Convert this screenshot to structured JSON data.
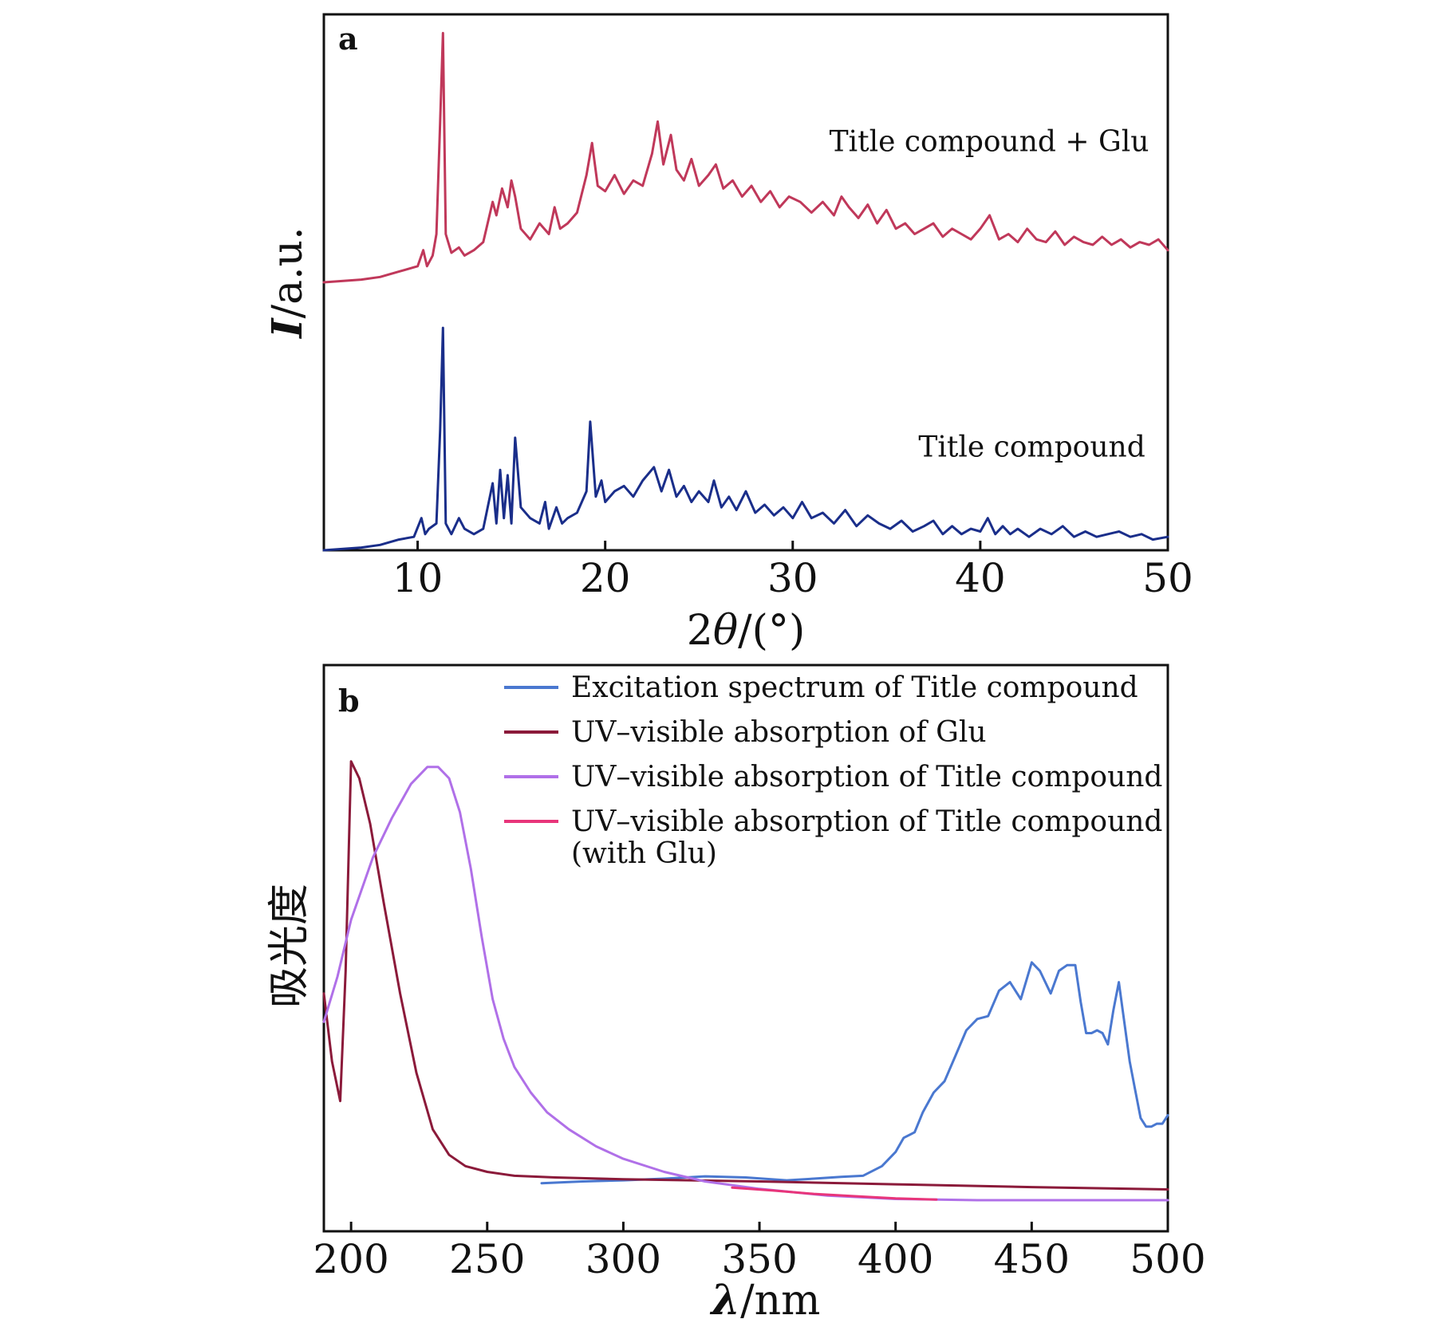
{
  "chart_data": [
    {
      "panel": "a",
      "type": "line",
      "xlabel_prefix": "2",
      "xlabel_symbol": "θ",
      "xlabel_unit": "/(°)",
      "ylabel_symbol": "I",
      "ylabel_unit": "/a.u.",
      "xlim": [
        5,
        50
      ],
      "ylim": [
        0,
        2.0
      ],
      "xticks": [
        "10",
        "20",
        "30",
        "40",
        "50"
      ],
      "xtick_values": [
        10,
        20,
        30,
        40,
        50
      ],
      "series": [
        {
          "name": "Title compound + Glu",
          "color": "#c0385a",
          "baseline_offset": 1.0,
          "x": [
            5.0,
            7.0,
            8.0,
            9.0,
            10.0,
            10.3,
            10.5,
            10.8,
            11.0,
            11.2,
            11.35,
            11.5,
            11.8,
            12.2,
            12.5,
            13.0,
            13.5,
            14.0,
            14.2,
            14.5,
            14.8,
            15.0,
            15.2,
            15.5,
            16.0,
            16.5,
            17.0,
            17.3,
            17.6,
            18.0,
            18.5,
            19.0,
            19.3,
            19.6,
            20.0,
            20.5,
            21.0,
            21.5,
            22.0,
            22.5,
            22.8,
            23.1,
            23.5,
            23.8,
            24.2,
            24.6,
            25.0,
            25.5,
            25.9,
            26.3,
            26.8,
            27.3,
            27.8,
            28.3,
            28.8,
            29.3,
            29.8,
            30.4,
            31.0,
            31.6,
            32.2,
            32.6,
            33.0,
            33.5,
            34.0,
            34.5,
            35.0,
            35.5,
            36.0,
            36.5,
            37.0,
            37.5,
            38.0,
            38.5,
            39.0,
            39.5,
            40.0,
            40.5,
            41.0,
            41.5,
            42.0,
            42.5,
            43.0,
            43.5,
            44.0,
            44.5,
            45.0,
            45.5,
            46.0,
            46.5,
            47.0,
            47.5,
            48.0,
            48.5,
            49.0,
            49.5,
            50.0
          ],
          "y": [
            1.0,
            1.01,
            1.02,
            1.04,
            1.06,
            1.12,
            1.06,
            1.1,
            1.18,
            1.6,
            1.93,
            1.18,
            1.11,
            1.13,
            1.1,
            1.12,
            1.15,
            1.3,
            1.25,
            1.35,
            1.28,
            1.38,
            1.32,
            1.2,
            1.16,
            1.22,
            1.18,
            1.28,
            1.2,
            1.22,
            1.26,
            1.4,
            1.52,
            1.36,
            1.34,
            1.4,
            1.33,
            1.38,
            1.36,
            1.48,
            1.6,
            1.44,
            1.55,
            1.42,
            1.38,
            1.46,
            1.36,
            1.4,
            1.44,
            1.35,
            1.38,
            1.32,
            1.36,
            1.3,
            1.34,
            1.28,
            1.32,
            1.3,
            1.26,
            1.3,
            1.25,
            1.32,
            1.28,
            1.24,
            1.29,
            1.22,
            1.27,
            1.2,
            1.22,
            1.18,
            1.2,
            1.22,
            1.17,
            1.2,
            1.18,
            1.16,
            1.2,
            1.25,
            1.16,
            1.18,
            1.15,
            1.2,
            1.16,
            1.15,
            1.19,
            1.14,
            1.17,
            1.15,
            1.14,
            1.17,
            1.14,
            1.16,
            1.13,
            1.15,
            1.14,
            1.16,
            1.12
          ]
        },
        {
          "name": "Title compound",
          "color": "#1a2e8a",
          "baseline_offset": 0.0,
          "x": [
            5.0,
            7.0,
            8.0,
            9.0,
            9.8,
            10.2,
            10.4,
            10.6,
            11.0,
            11.2,
            11.35,
            11.5,
            11.8,
            12.2,
            12.5,
            13.0,
            13.5,
            14.0,
            14.2,
            14.4,
            14.6,
            14.8,
            15.0,
            15.2,
            15.5,
            16.0,
            16.5,
            16.8,
            17.0,
            17.4,
            17.7,
            18.0,
            18.5,
            19.0,
            19.2,
            19.5,
            19.8,
            20.0,
            20.5,
            21.0,
            21.5,
            22.0,
            22.6,
            23.0,
            23.4,
            23.8,
            24.2,
            24.6,
            25.0,
            25.5,
            25.8,
            26.2,
            26.6,
            27.0,
            27.5,
            28.0,
            28.5,
            29.0,
            29.5,
            30.0,
            30.5,
            31.0,
            31.6,
            32.2,
            32.8,
            33.4,
            34.0,
            34.6,
            35.2,
            35.8,
            36.4,
            37.0,
            37.5,
            38.0,
            38.5,
            39.0,
            39.5,
            40.0,
            40.4,
            40.8,
            41.2,
            41.6,
            42.0,
            42.6,
            43.2,
            43.8,
            44.4,
            45.0,
            45.6,
            46.2,
            46.8,
            47.4,
            48.0,
            48.6,
            49.2,
            50.0
          ],
          "y": [
            0.0,
            0.01,
            0.02,
            0.04,
            0.05,
            0.12,
            0.06,
            0.08,
            0.1,
            0.45,
            0.83,
            0.1,
            0.06,
            0.12,
            0.08,
            0.06,
            0.08,
            0.25,
            0.1,
            0.3,
            0.12,
            0.28,
            0.1,
            0.42,
            0.16,
            0.12,
            0.1,
            0.18,
            0.08,
            0.16,
            0.1,
            0.12,
            0.14,
            0.22,
            0.48,
            0.2,
            0.26,
            0.18,
            0.22,
            0.24,
            0.2,
            0.26,
            0.31,
            0.22,
            0.3,
            0.2,
            0.24,
            0.18,
            0.22,
            0.18,
            0.26,
            0.16,
            0.2,
            0.15,
            0.22,
            0.14,
            0.17,
            0.13,
            0.16,
            0.12,
            0.18,
            0.12,
            0.14,
            0.1,
            0.15,
            0.09,
            0.13,
            0.1,
            0.08,
            0.11,
            0.07,
            0.09,
            0.11,
            0.06,
            0.09,
            0.06,
            0.08,
            0.07,
            0.12,
            0.06,
            0.09,
            0.06,
            0.08,
            0.05,
            0.08,
            0.06,
            0.09,
            0.05,
            0.07,
            0.05,
            0.06,
            0.07,
            0.05,
            0.06,
            0.04,
            0.05
          ]
        }
      ],
      "annotations": [
        {
          "text": "Title compound + Glu",
          "x": 49,
          "y": 1.49,
          "anchor": "end"
        },
        {
          "text": "Title compound",
          "x": 48.8,
          "y": 0.35,
          "anchor": "end"
        }
      ]
    },
    {
      "panel": "b",
      "type": "line",
      "xlabel_symbol": "λ",
      "xlabel_unit": "/nm",
      "ylabel": "吸光度",
      "xlim": [
        190,
        500
      ],
      "ylim": [
        0,
        1.0
      ],
      "xticks": [
        "200",
        "250",
        "300",
        "350",
        "400",
        "450",
        "500"
      ],
      "xtick_values": [
        200,
        250,
        300,
        350,
        400,
        450,
        500
      ],
      "legend_position": "top-right",
      "series": [
        {
          "name": "Excitation spectrum of Title compound",
          "legend_lines": [
            "Excitation spectrum of Title compound"
          ],
          "color": "#4a78d0",
          "x": [
            270,
            285,
            300,
            315,
            330,
            345,
            360,
            370,
            380,
            388,
            395,
            400,
            403,
            407,
            410,
            414,
            418,
            422,
            426,
            430,
            434,
            438,
            442,
            446,
            450,
            453,
            457,
            460,
            463,
            466,
            468,
            470,
            472,
            474,
            476,
            478,
            480,
            482,
            484,
            486,
            488,
            490,
            492,
            494,
            496,
            498,
            500
          ],
          "y": [
            0.085,
            0.088,
            0.09,
            0.093,
            0.097,
            0.095,
            0.09,
            0.093,
            0.096,
            0.098,
            0.115,
            0.14,
            0.165,
            0.175,
            0.21,
            0.245,
            0.265,
            0.31,
            0.355,
            0.375,
            0.38,
            0.425,
            0.44,
            0.41,
            0.475,
            0.46,
            0.42,
            0.46,
            0.47,
            0.47,
            0.405,
            0.35,
            0.35,
            0.355,
            0.35,
            0.33,
            0.39,
            0.44,
            0.37,
            0.3,
            0.25,
            0.2,
            0.185,
            0.185,
            0.19,
            0.19,
            0.205
          ]
        },
        {
          "name": "UV–visible absorption of Glu",
          "legend_lines": [
            "UV–visible absorption of Glu"
          ],
          "color": "#8b1a3a",
          "x": [
            190,
            193,
            196,
            198,
            200,
            203,
            207,
            212,
            218,
            224,
            230,
            236,
            242,
            250,
            260,
            275,
            300,
            350,
            400,
            450,
            500
          ],
          "y": [
            0.42,
            0.3,
            0.23,
            0.46,
            0.83,
            0.8,
            0.72,
            0.58,
            0.42,
            0.28,
            0.18,
            0.135,
            0.115,
            0.105,
            0.098,
            0.095,
            0.092,
            0.088,
            0.083,
            0.078,
            0.074
          ]
        },
        {
          "name": "UV–visible absorption of Title compound",
          "legend_lines": [
            "UV–visible absorption of Title compound"
          ],
          "color": "#b070e8",
          "x": [
            190,
            195,
            200,
            208,
            215,
            222,
            228,
            232,
            236,
            240,
            244,
            248,
            252,
            256,
            260,
            266,
            272,
            280,
            290,
            300,
            315,
            330,
            350,
            375,
            400,
            430,
            460,
            500
          ],
          "y": [
            0.37,
            0.45,
            0.55,
            0.66,
            0.73,
            0.79,
            0.82,
            0.82,
            0.8,
            0.74,
            0.64,
            0.52,
            0.41,
            0.34,
            0.29,
            0.245,
            0.21,
            0.18,
            0.15,
            0.128,
            0.105,
            0.088,
            0.075,
            0.063,
            0.057,
            0.055,
            0.055,
            0.055
          ]
        },
        {
          "name": "UV–visible absorption of Title compound (with Glu)",
          "legend_lines": [
            "UV–visible absorption of Title compound",
            "(with Glu)"
          ],
          "color": "#e8357a",
          "x": [
            340,
            355,
            370,
            385,
            400,
            415
          ],
          "y": [
            0.077,
            0.072,
            0.066,
            0.062,
            0.058,
            0.056
          ]
        }
      ]
    }
  ]
}
